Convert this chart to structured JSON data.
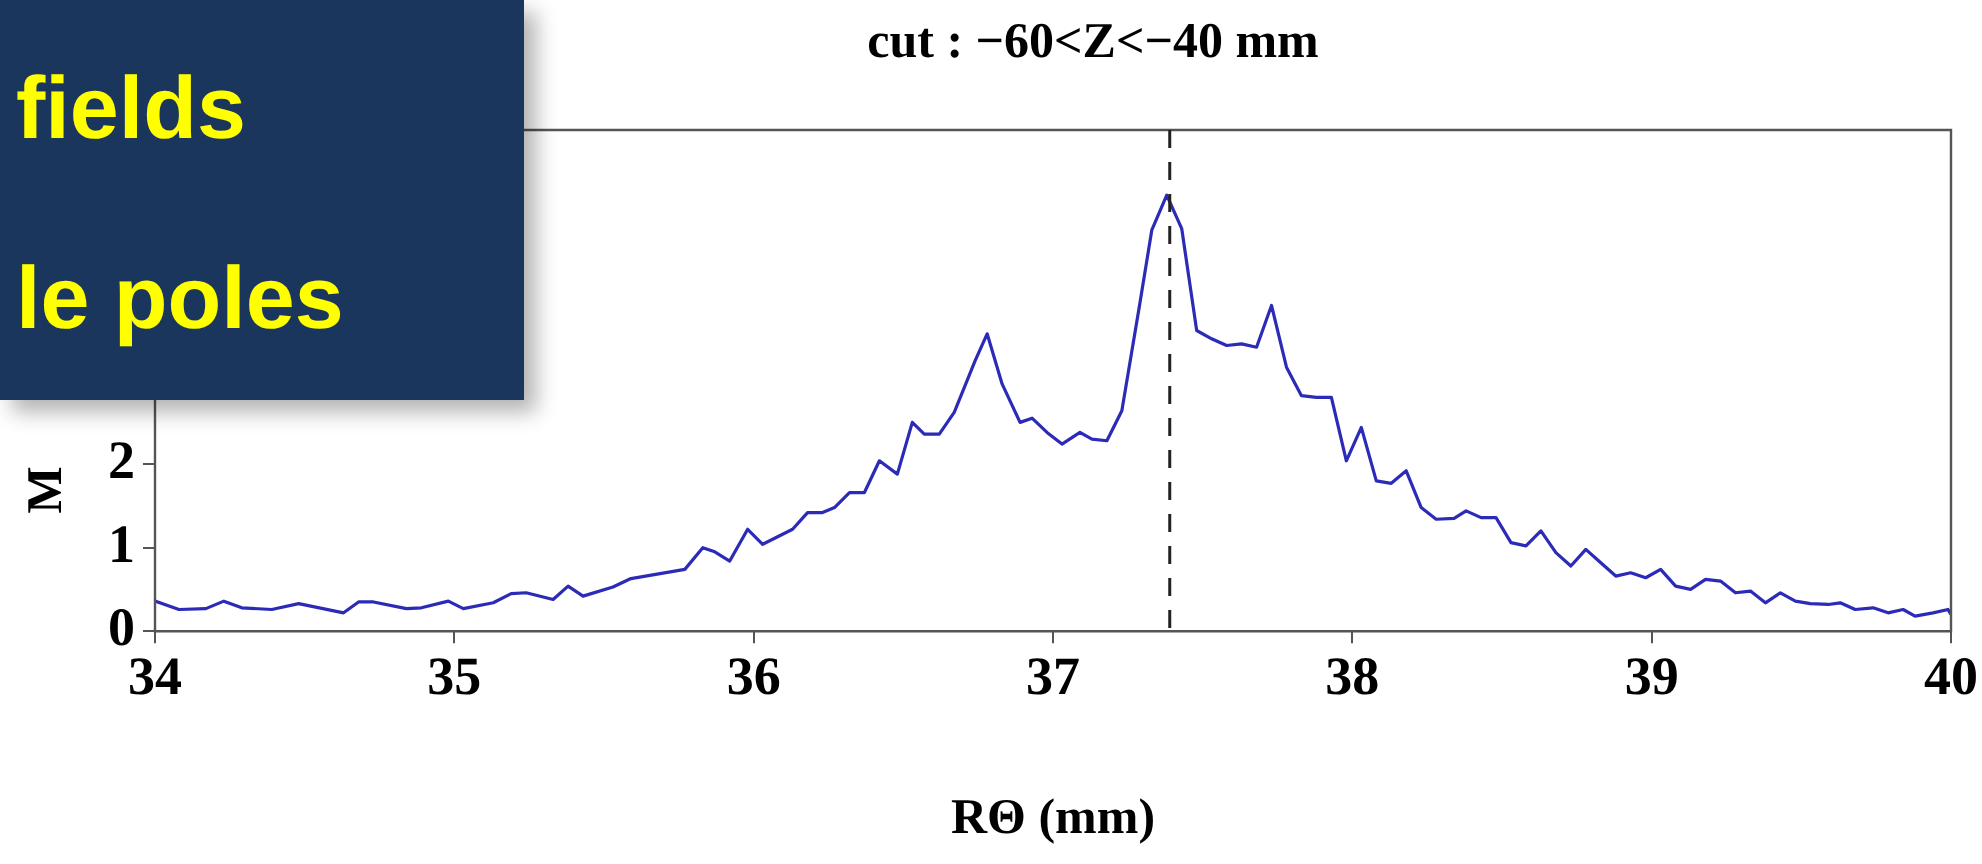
{
  "chart_data": {
    "type": "line",
    "title": "cut : −60<Z<−40 mm",
    "xlabel": "RΘ (mm)",
    "ylabel": "M",
    "annotations": [
      "fields",
      "le poles"
    ],
    "xlim": [
      34,
      40
    ],
    "xticks": [
      34,
      35,
      36,
      37,
      38,
      39,
      40
    ],
    "ylim": [
      0,
      6
    ],
    "yticks": [
      0,
      1,
      2
    ],
    "grid": false,
    "legend": false,
    "marker": "none",
    "line_style": "solid",
    "ref_lines": [
      {
        "axis": "x",
        "value": 37.39,
        "color": "#222222",
        "line_style": "dashed"
      }
    ],
    "series": [
      {
        "color": "#2b2bb8",
        "x": [
          34.0,
          34.08,
          34.17,
          34.23,
          34.29,
          34.39,
          34.48,
          34.63,
          34.68,
          34.73,
          34.84,
          34.89,
          34.98,
          35.03,
          35.13,
          35.19,
          35.24,
          35.33,
          35.38,
          35.43,
          35.53,
          35.59,
          35.77,
          35.83,
          35.87,
          35.92,
          35.98,
          36.03,
          36.13,
          36.18,
          36.23,
          36.27,
          36.32,
          36.37,
          36.42,
          36.48,
          36.53,
          36.57,
          36.62,
          36.67,
          36.74,
          36.78,
          36.83,
          36.89,
          36.93,
          36.98,
          37.03,
          37.09,
          37.13,
          37.18,
          37.23,
          37.29,
          37.33,
          37.38,
          37.43,
          37.48,
          37.53,
          37.58,
          37.63,
          37.68,
          37.73,
          37.78,
          37.83,
          37.88,
          37.93,
          37.98,
          38.03,
          38.08,
          38.13,
          38.18,
          38.23,
          38.28,
          38.34,
          38.38,
          38.43,
          38.48,
          38.53,
          38.58,
          38.63,
          38.68,
          38.73,
          38.78,
          38.83,
          38.88,
          38.93,
          38.98,
          39.03,
          39.08,
          39.13,
          39.18,
          39.23,
          39.28,
          39.33,
          39.38,
          39.43,
          39.48,
          39.53,
          39.59,
          39.63,
          39.68,
          39.74,
          39.79,
          39.84,
          39.88,
          39.94,
          39.99,
          40.0
        ],
        "values": [
          0.36,
          0.26,
          0.27,
          0.36,
          0.28,
          0.26,
          0.33,
          0.22,
          0.35,
          0.35,
          0.27,
          0.28,
          0.36,
          0.27,
          0.34,
          0.45,
          0.46,
          0.38,
          0.54,
          0.42,
          0.53,
          0.63,
          0.74,
          1.0,
          0.95,
          0.84,
          1.22,
          1.04,
          1.22,
          1.42,
          1.42,
          1.48,
          1.66,
          1.66,
          2.04,
          1.88,
          2.5,
          2.36,
          2.36,
          2.62,
          3.24,
          3.56,
          2.96,
          2.5,
          2.55,
          2.38,
          2.24,
          2.38,
          2.3,
          2.28,
          2.64,
          3.92,
          4.8,
          5.22,
          4.82,
          3.6,
          3.5,
          3.42,
          3.44,
          3.4,
          3.9,
          3.16,
          2.82,
          2.8,
          2.8,
          2.04,
          2.44,
          1.8,
          1.77,
          1.92,
          1.48,
          1.34,
          1.35,
          1.44,
          1.36,
          1.36,
          1.06,
          1.02,
          1.2,
          0.94,
          0.78,
          0.98,
          0.82,
          0.66,
          0.7,
          0.64,
          0.74,
          0.54,
          0.5,
          0.62,
          0.6,
          0.46,
          0.48,
          0.34,
          0.46,
          0.36,
          0.33,
          0.32,
          0.34,
          0.26,
          0.28,
          0.22,
          0.26,
          0.18,
          0.22,
          0.26,
          0.2
        ]
      }
    ]
  }
}
